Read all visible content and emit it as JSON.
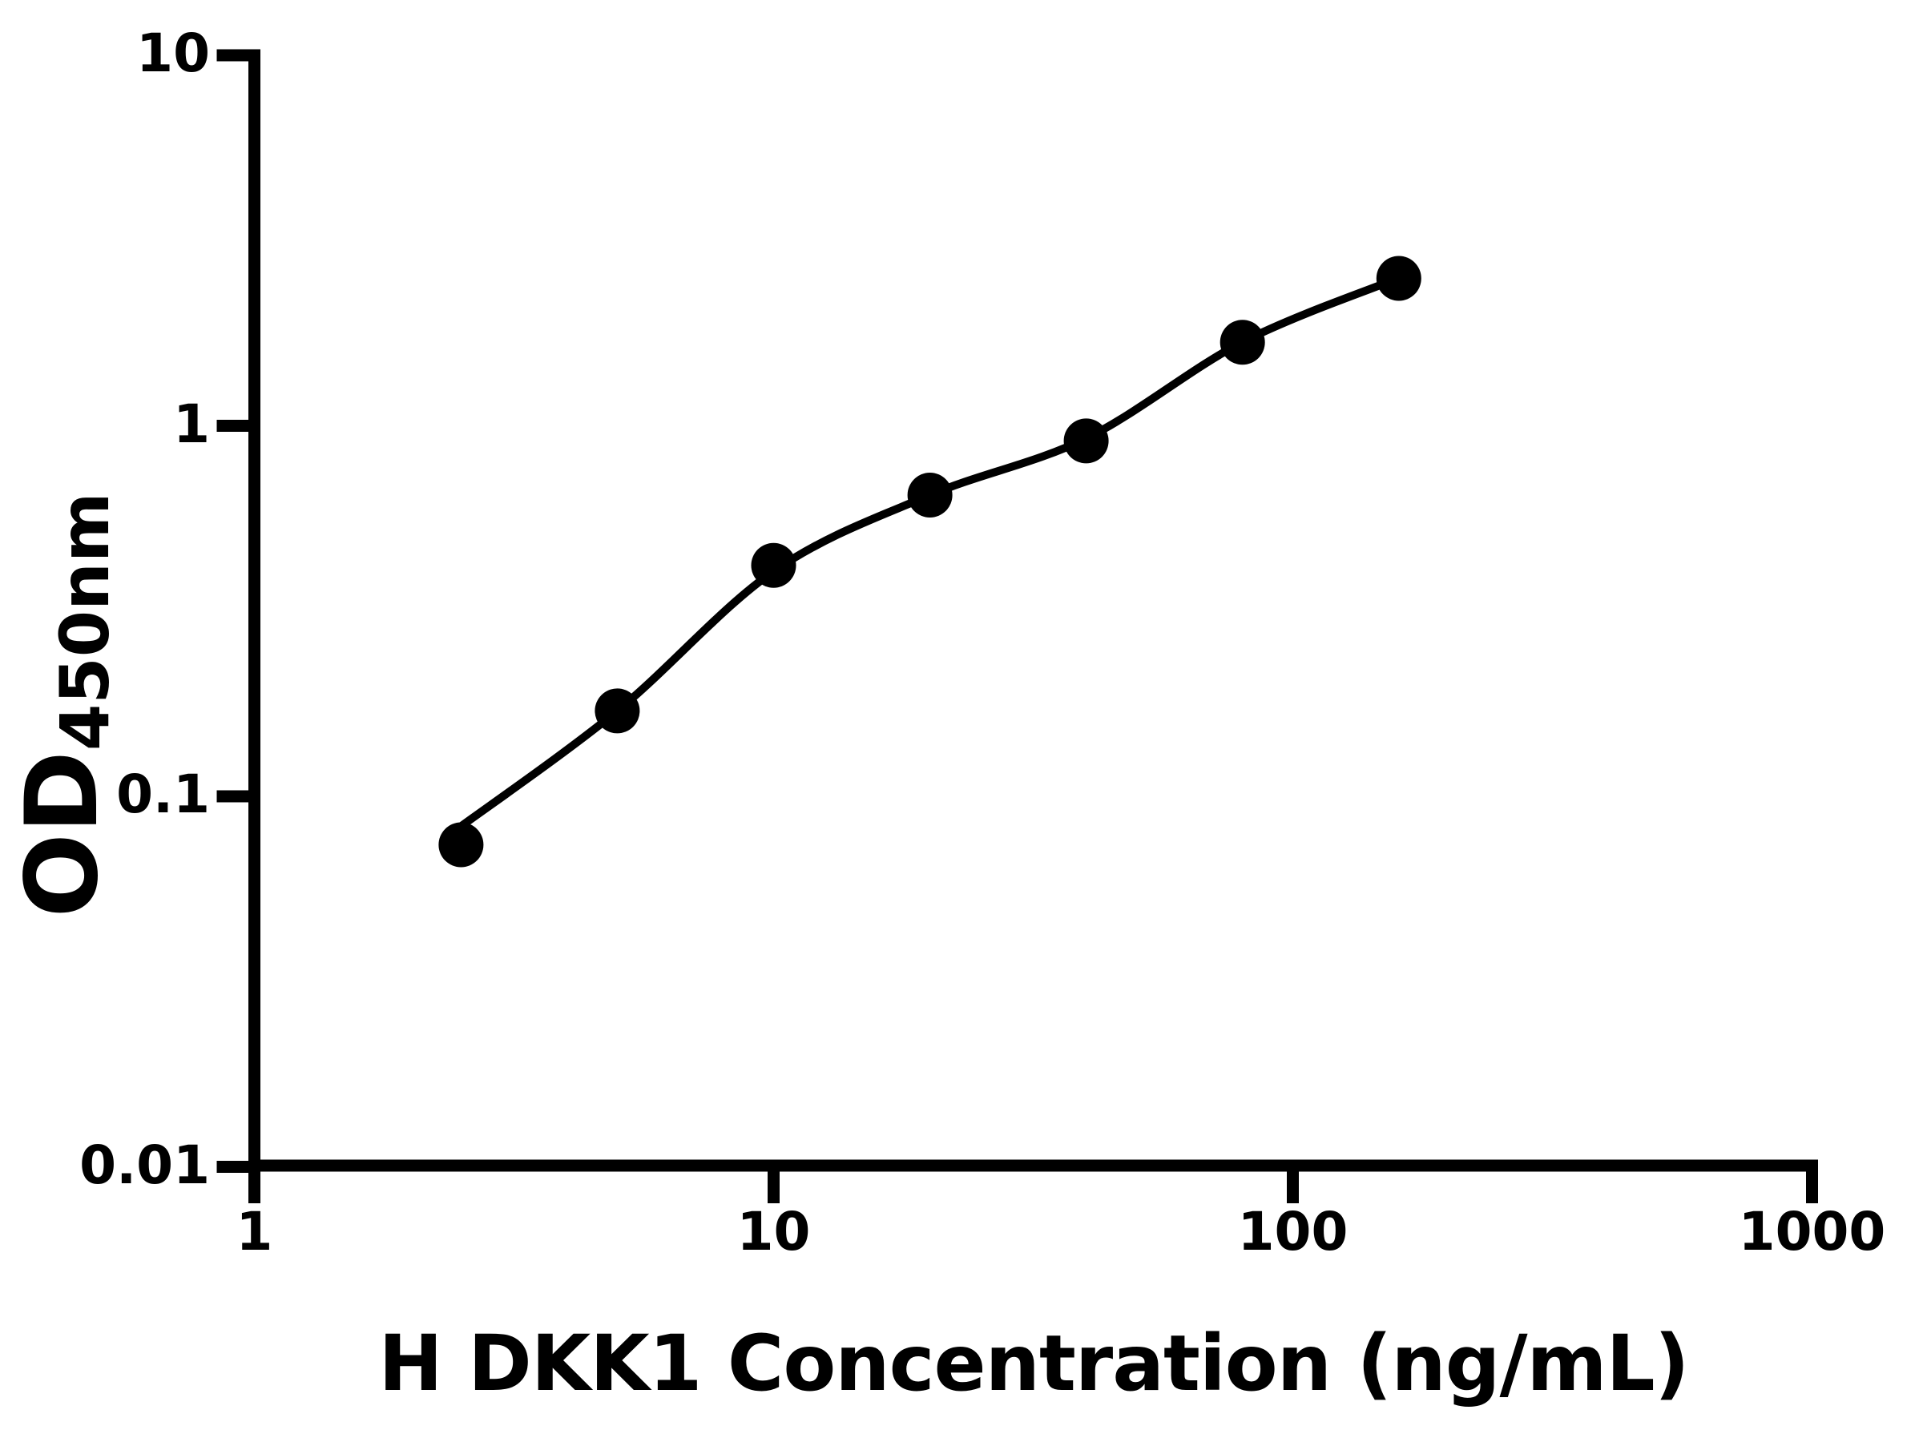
{
  "chart_data": {
    "type": "scatter",
    "title": "",
    "xlabel": "H DKK1 Concentration (ng/mL)",
    "ylabel_main": "OD",
    "ylabel_sub": "450nm",
    "x_scale": "log",
    "y_scale": "log",
    "xlim": [
      1,
      1000
    ],
    "ylim": [
      0.01,
      10
    ],
    "x_ticks": [
      "1",
      "10",
      "100",
      "1000"
    ],
    "y_ticks": [
      "10",
      "1",
      "0.1",
      "0.01"
    ],
    "grid": false,
    "legend": "none",
    "marker": "filled-circle",
    "colors": {
      "point": "#000000",
      "line": "#000000",
      "axis": "#000000"
    },
    "points": [
      {
        "x": 2.5,
        "y": 0.074
      },
      {
        "x": 5,
        "y": 0.17
      },
      {
        "x": 10,
        "y": 0.42
      },
      {
        "x": 20,
        "y": 0.65
      },
      {
        "x": 40,
        "y": 0.91
      },
      {
        "x": 80,
        "y": 1.68
      },
      {
        "x": 160,
        "y": 2.5
      }
    ],
    "fit_curve": [
      {
        "x": 2.47,
        "y": 0.082
      },
      {
        "x": 5,
        "y": 0.17
      },
      {
        "x": 10,
        "y": 0.405
      },
      {
        "x": 20,
        "y": 0.65
      },
      {
        "x": 40,
        "y": 0.925
      },
      {
        "x": 80,
        "y": 1.683
      },
      {
        "x": 160,
        "y": 2.506
      }
    ]
  }
}
